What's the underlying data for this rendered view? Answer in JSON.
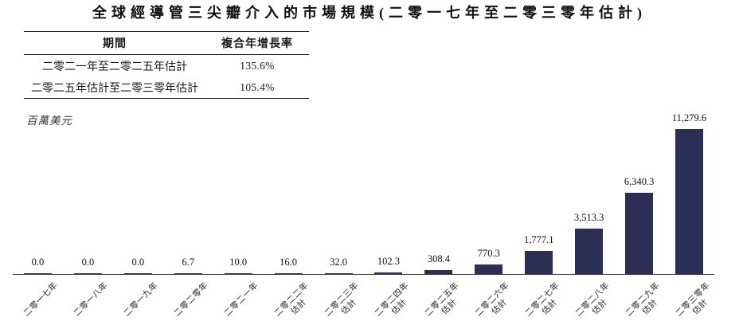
{
  "title": "全球經導管三尖瓣介入的市場規模(二零一七年至二零三零年估計)",
  "unit_label": "百萬美元",
  "growth_table": {
    "headers": [
      "期間",
      "複合年增長率"
    ],
    "rows": [
      {
        "period": "二零二一年至二零二五年估計",
        "cagr": "135.6%"
      },
      {
        "period": "二零二五年估計至二零三零年估計",
        "cagr": "105.4%"
      }
    ]
  },
  "chart_data": {
    "type": "bar",
    "title": "全球經導管三尖瓣介入的市場規模(二零一七年至二零三零年估計)",
    "xlabel": "",
    "ylabel": "百萬美元",
    "categories": [
      "二零一七年",
      "二零一八年",
      "二零一九年",
      "二零二零年",
      "二零二一年",
      "二零二二年\n估計",
      "二零二三年\n估計",
      "二零二四年\n估計",
      "二零二五年\n估計",
      "二零二六年\n估計",
      "二零二七年\n估計",
      "二零二八年\n估計",
      "二零二九年\n估計",
      "二零三零年\n估計"
    ],
    "values": [
      0.0,
      0.0,
      0.0,
      6.7,
      10.0,
      16.0,
      32.0,
      102.3,
      308.4,
      770.3,
      1777.1,
      3513.3,
      6340.3,
      11279.6
    ],
    "value_labels": [
      "0.0",
      "0.0",
      "0.0",
      "6.7",
      "10.0",
      "16.0",
      "32.0",
      "102.3",
      "308.4",
      "770.3",
      "1,777.1",
      "3,513.3",
      "6,340.3",
      "11,279.6"
    ],
    "ylim": [
      0,
      11279.6
    ],
    "bar_color": "#2b2f55",
    "grid": false,
    "legend": null
  }
}
